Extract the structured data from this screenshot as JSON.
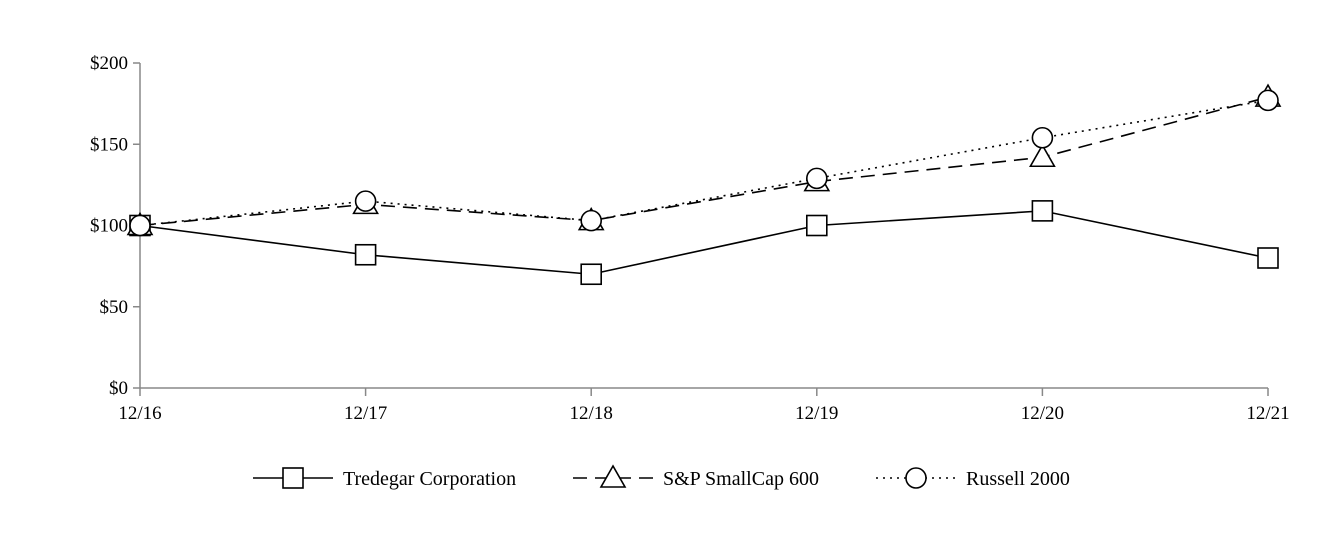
{
  "chart_data": {
    "type": "line",
    "title": "",
    "xlabel": "",
    "ylabel": "",
    "categories": [
      "12/16",
      "12/17",
      "12/18",
      "12/19",
      "12/20",
      "12/21"
    ],
    "ylim": [
      0,
      200
    ],
    "yticks": [
      0,
      50,
      100,
      150,
      200
    ],
    "ytick_labels": [
      "$0",
      "$50",
      "$100",
      "$150",
      "$200"
    ],
    "grid": false,
    "legend_position": "bottom",
    "series": [
      {
        "name": "Tredegar Corporation",
        "values": [
          100,
          82,
          70,
          100,
          109,
          80
        ],
        "marker": "square",
        "dash": "solid"
      },
      {
        "name": "S&P SmallCap 600",
        "values": [
          100,
          113,
          103,
          127,
          142,
          179
        ],
        "marker": "triangle",
        "dash": "dashed"
      },
      {
        "name": "Russell 2000",
        "values": [
          100,
          115,
          103,
          129,
          154,
          177
        ],
        "marker": "circle",
        "dash": "dotted"
      }
    ]
  }
}
